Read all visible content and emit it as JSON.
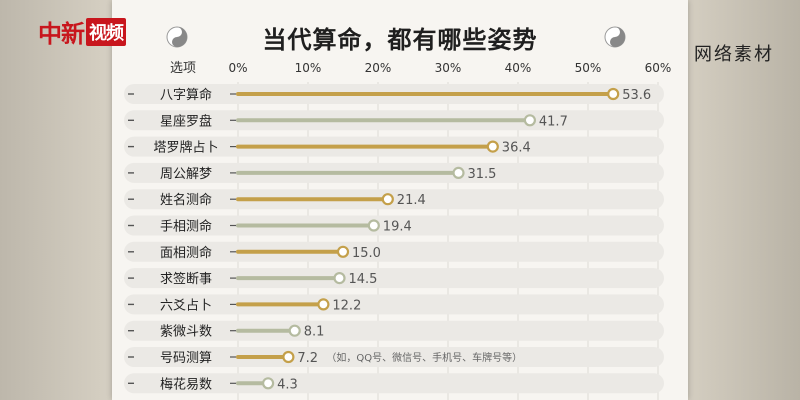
{
  "logo": {
    "text": "中新",
    "box": "视频"
  },
  "watermark": "网络素材",
  "chart_data": {
    "type": "bar",
    "title": "当代算命，都有哪些姿势",
    "category_header": "选项",
    "xticks": [
      "0%",
      "10%",
      "20%",
      "30%",
      "40%",
      "50%",
      "60%"
    ],
    "xlim": [
      0,
      60
    ],
    "categories": [
      "八字算命",
      "星座罗盘",
      "塔罗牌占卜",
      "周公解梦",
      "姓名测命",
      "手相测命",
      "面相测命",
      "求签断事",
      "六爻占卜",
      "紫微斗数",
      "号码测算",
      "梅花易数"
    ],
    "values": [
      53.6,
      41.7,
      36.4,
      31.5,
      21.4,
      19.4,
      15.0,
      14.5,
      12.2,
      8.1,
      7.2,
      4.3
    ],
    "value_labels": [
      "53.6",
      "41.7",
      "36.4",
      "31.5",
      "21.4",
      "19.4",
      "15.0",
      "14.5",
      "12.2",
      "8.1",
      "7.2",
      "4.3"
    ],
    "highlighted": [
      true,
      false,
      true,
      false,
      true,
      false,
      true,
      false,
      true,
      false,
      true,
      false
    ],
    "annotations": {
      "10": "（如，QQ号、微信号、手机号、车牌号等）"
    },
    "colors": {
      "highlight": "#c4a04a",
      "normal": "#b5bba0",
      "track": "#ebe9e5",
      "grid": "#dcdad5"
    }
  }
}
